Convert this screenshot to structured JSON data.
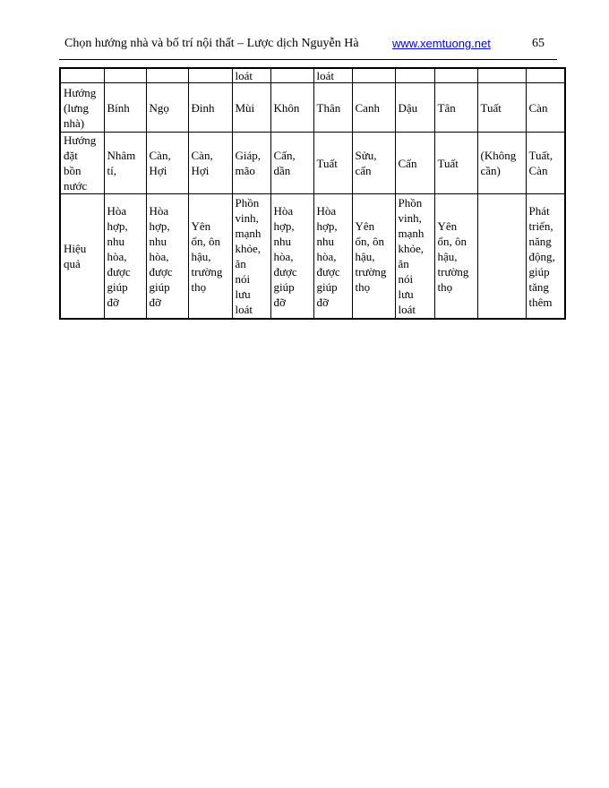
{
  "header": {
    "title": "Chọn hướng nhà và bố trí nội thất – Lược dịch Nguyễn Hà",
    "link": "www.xemtuong.net",
    "page_number": "65",
    "link_color": "#0000ee"
  },
  "table": {
    "rows": [
      [
        "",
        "",
        "",
        "",
        "loát",
        "",
        "loát",
        "",
        "",
        "",
        "",
        ""
      ],
      [
        "Hướng\n(lưng\nnhà)",
        "Bính",
        "Ngọ",
        "Đinh",
        "Mùi",
        "Khôn",
        "Thân",
        "Canh",
        "Dậu",
        "Tân",
        "Tuất",
        "Càn"
      ],
      [
        "Hướng\nđặt\nbồn\nnước",
        "Nhâm\ntí,",
        "Càn,\nHợi",
        "Càn,\nHợi",
        "Giáp,\nmão",
        "Cấn,\ndần",
        "Tuất",
        "Sửu,\ncấn",
        "Cấn",
        "Tuất",
        "(Không\ncần)",
        "Tuất,\nCàn"
      ],
      [
        "Hiệu\nquả",
        "Hòa\nhợp,\nnhu\nhòa,\nđược\ngiúp\nđỡ",
        "Hòa\nhợp,\nnhu\nhòa,\nđược\ngiúp\nđỡ",
        "Yên\nổn, ôn\nhậu,\ntrường\nthọ",
        "Phồn\nvinh,\nmạnh\nkhỏe,\năn\nnói\nlưu\nloát",
        "Hòa\nhợp,\nnhu\nhòa,\nđược\ngiúp\nđỡ",
        "Hòa\nhợp,\nnhu\nhòa,\nđược\ngiúp\nđỡ",
        "Yên\nổn, ôn\nhậu,\ntrường\nthọ",
        "Phồn\nvinh,\nmạnh\nkhỏe,\năn\nnói\nlưu\nloát",
        "Yên\nổn, ôn\nhậu,\ntrường\nthọ",
        "",
        "Phát\ntriển,\nnăng\nđộng,\ngiúp\ntăng\nthêm"
      ]
    ]
  }
}
